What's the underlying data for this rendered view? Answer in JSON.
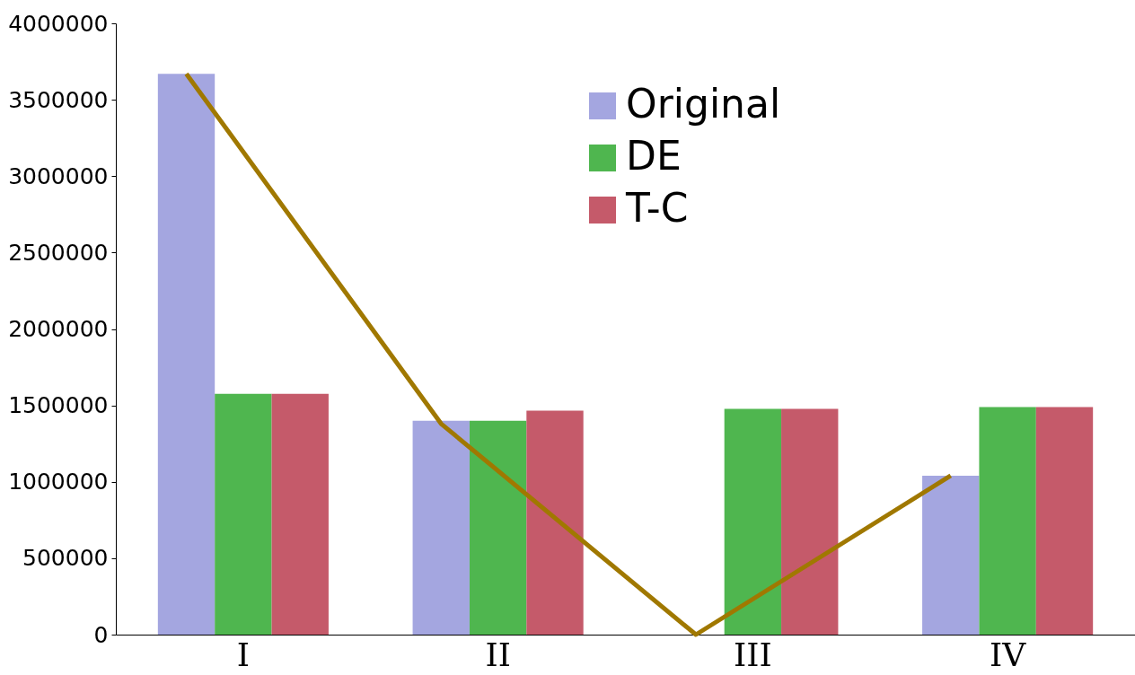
{
  "chart_data": {
    "type": "bar",
    "categories": [
      "I",
      "II",
      "III",
      "IV"
    ],
    "series": [
      {
        "name": "Original",
        "color": "#a4a6e0",
        "values": [
          3670000,
          1400000,
          0,
          1040000
        ]
      },
      {
        "name": "DE",
        "color": "#4fb64f",
        "values": [
          1575000,
          1400000,
          1477000,
          1489000
        ]
      },
      {
        "name": "T-C",
        "color": "#c55a6a",
        "values": [
          1575000,
          1465000,
          1477000,
          1489000
        ]
      },
      {
        "type": "line",
        "color": "#a07800",
        "values": [
          3670000,
          1380000,
          0,
          1040000
        ]
      }
    ],
    "ylim": [
      0,
      4000000
    ],
    "yticks": [
      0,
      500000,
      1000000,
      1500000,
      2000000,
      2500000,
      3000000,
      3500000,
      4000000
    ],
    "grid": false,
    "legend": "top right"
  }
}
